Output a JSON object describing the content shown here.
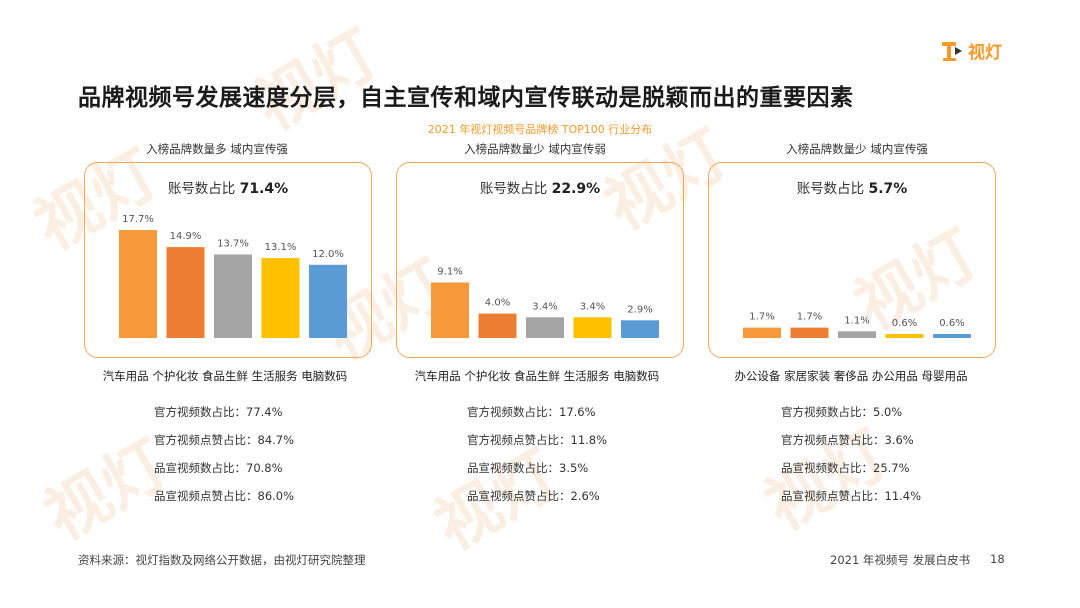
{
  "header": {
    "title": "品牌视频号发展速度分层，自主宣传和域内宣传联动是脱颖而出的重要因素",
    "subtitle": "2021 年视灯视频号品牌榜 TOP100 行业分布",
    "logo_text": "视灯",
    "watermark_text": "视灯"
  },
  "colors": {
    "accent": "#f39a2b",
    "bars": [
      "#f7993b",
      "#ed7d31",
      "#a5a5a5",
      "#ffc000",
      "#5b9bd5"
    ]
  },
  "groups": [
    {
      "label": "入榜品牌数量多   域内宣传强",
      "ratio_label": "账号数占比",
      "ratio_value": "71.4%",
      "categories_text": "汽车用品 个护化妆 食品生鲜 生活服务 电脑数码",
      "stats": [
        {
          "label": "官方视频数占比：",
          "value": "77.4%"
        },
        {
          "label": "官方视频点赞占比：",
          "value": "84.7%"
        },
        {
          "label": "品宣视频数占比：",
          "value": "70.8%"
        },
        {
          "label": "品宣视频点赞占比：",
          "value": "86.0%"
        }
      ]
    },
    {
      "label": "入榜品牌数量少   域内宣传弱",
      "ratio_label": "账号数占比",
      "ratio_value": "22.9%",
      "categories_text": "汽车用品 个护化妆 食品生鲜 生活服务 电脑数码",
      "stats": [
        {
          "label": "官方视频数占比：",
          "value": "17.6%"
        },
        {
          "label": "官方视频点赞占比：",
          "value": "11.8%"
        },
        {
          "label": "品宣视频数占比：",
          "value": "3.5%"
        },
        {
          "label": "品宣视频点赞占比：",
          "value": "2.6%"
        }
      ]
    },
    {
      "label": "入榜品牌数量少   域内宣传强",
      "ratio_label": "账号数占比",
      "ratio_value": "5.7%",
      "categories_text": "办公设备 家居家装 奢侈品 办公用品 母婴用品",
      "stats": [
        {
          "label": "官方视频数占比：",
          "value": "5.0%"
        },
        {
          "label": "官方视频点赞占比：",
          "value": "3.6%"
        },
        {
          "label": "品宣视频数占比：",
          "value": "25.7%"
        },
        {
          "label": "品宣视频点赞占比：",
          "value": "11.4%"
        }
      ]
    }
  ],
  "chart_data": [
    {
      "type": "bar",
      "categories": [
        "汽车用品",
        "个护化妆",
        "食品生鲜",
        "生活服务",
        "电脑数码"
      ],
      "values": [
        17.7,
        14.9,
        13.7,
        13.1,
        12.0
      ],
      "labels": [
        "17.7%",
        "14.9%",
        "13.7%",
        "13.1%",
        "12.0%"
      ],
      "ylim": [
        0,
        20
      ]
    },
    {
      "type": "bar",
      "categories": [
        "汽车用品",
        "个护化妆",
        "食品生鲜",
        "生活服务",
        "电脑数码"
      ],
      "values": [
        9.1,
        4.0,
        3.4,
        3.4,
        2.9
      ],
      "labels": [
        "9.1%",
        "4.0%",
        "3.4%",
        "3.4%",
        "2.9%"
      ],
      "ylim": [
        0,
        20
      ]
    },
    {
      "type": "bar",
      "categories": [
        "办公设备",
        "家居家装",
        "奢侈品",
        "办公用品",
        "母婴用品"
      ],
      "values": [
        1.7,
        1.7,
        1.1,
        0.6,
        0.6
      ],
      "labels": [
        "1.7%",
        "1.7%",
        "1.1%",
        "0.6%",
        "0.6%"
      ],
      "ylim": [
        0,
        20
      ]
    }
  ],
  "footer": {
    "source": "资料来源：视灯指数及网络公开数据，由视灯研究院整理",
    "report_title": "2021 年视频号 发展白皮书",
    "page_number": "18"
  }
}
